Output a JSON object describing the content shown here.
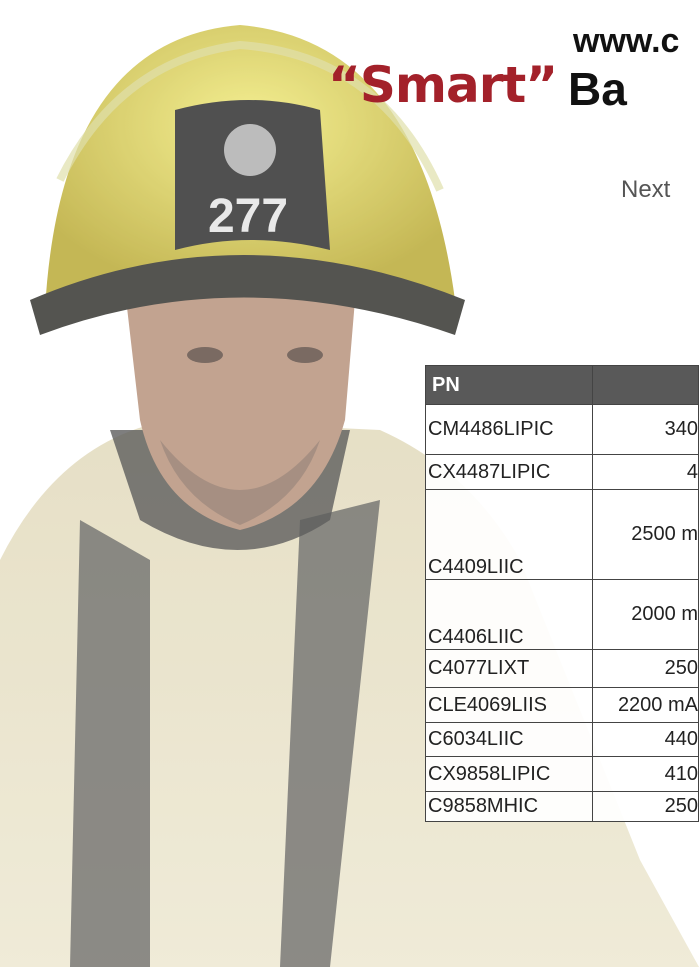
{
  "header": {
    "url": "www.c",
    "title_quote": "“Smart”",
    "title_rest": "Ba",
    "subtitle": "Next"
  },
  "photo": {
    "helmet_number": "277"
  },
  "table": {
    "columns": [
      "PN"
    ],
    "rows": [
      [
        "CM4486LIPIC",
        "340"
      ],
      [
        "CX4487LIPIC",
        "4"
      ],
      [
        "C4409LIIC",
        "2500 m"
      ],
      [
        "C4406LIIC",
        "2000 m"
      ],
      [
        "C4077LIXT",
        "250"
      ],
      [
        "CLE4069LIIS",
        "2200 mA"
      ],
      [
        "C6034LIIC",
        "440"
      ],
      [
        "CX9858LIPIC",
        "410"
      ],
      [
        "C9858MHIC",
        "250"
      ]
    ]
  }
}
